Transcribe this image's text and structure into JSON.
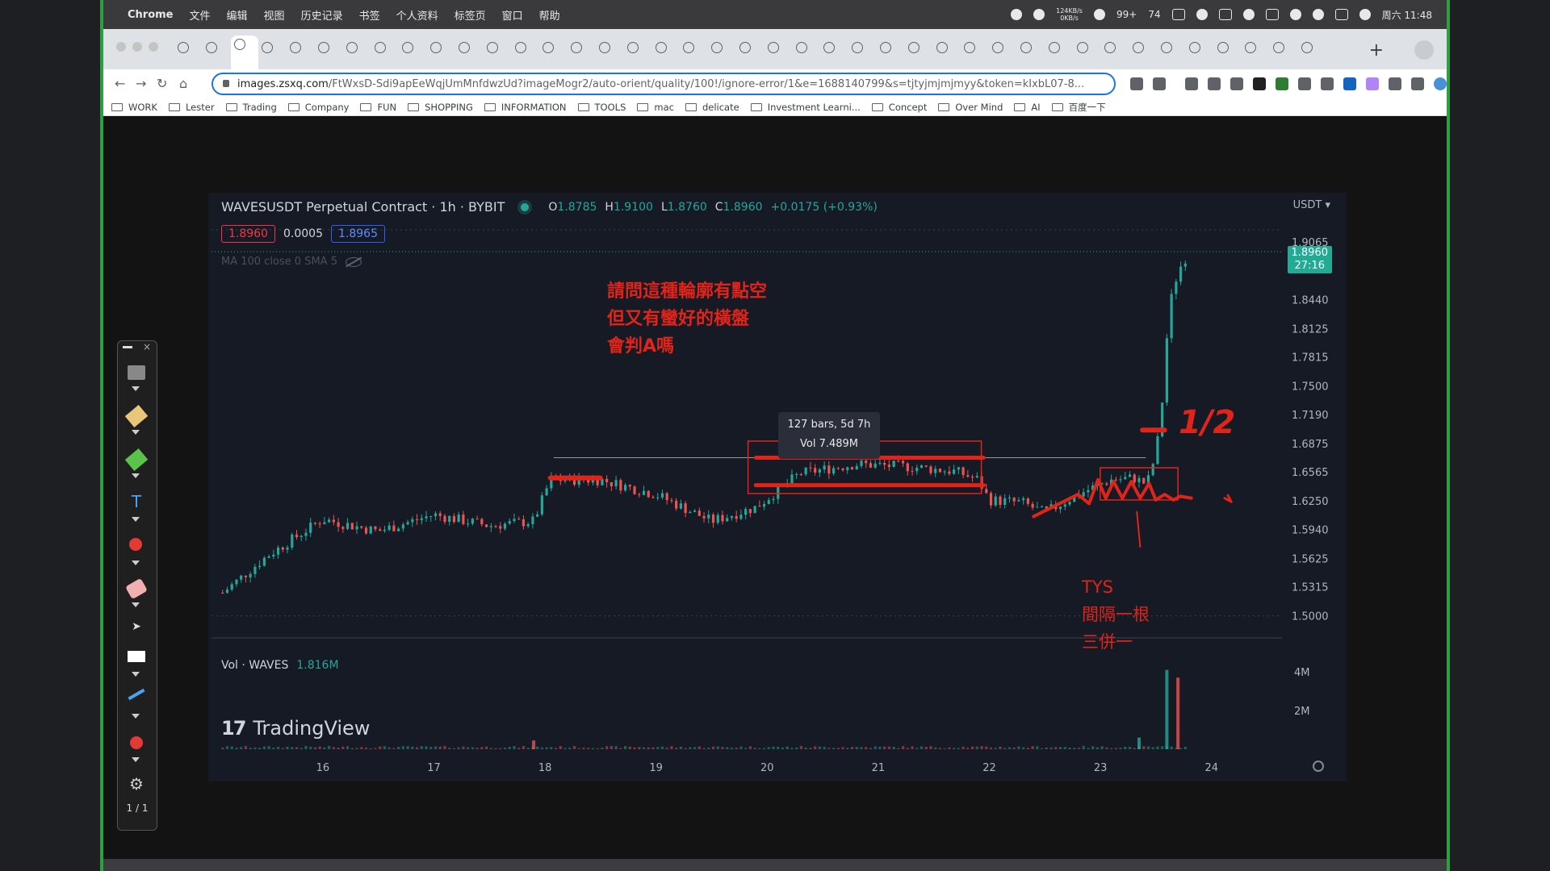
{
  "menubar": {
    "app": "Chrome",
    "items": [
      "文件",
      "编辑",
      "视图",
      "历史记录",
      "书签",
      "个人资料",
      "标签页",
      "窗口",
      "帮助"
    ],
    "net_up": "124KB/s",
    "net_down": "0KB/s",
    "badge1": "99+",
    "badge2": "74",
    "clock": "周六 11:48"
  },
  "browser": {
    "url_host": "images.zsxq.com",
    "url_path": "/FtWxsD-Sdi9apEeWqjUmMnfdwzUd?imageMogr2/auto-orient/quality/100!/ignore-error/1&e=1688140799&s=tjtyjmjmjmyy&token=kIxbL07-8...",
    "bookmarks": [
      "WORK",
      "Lester",
      "Trading",
      "Company",
      "FUN",
      "SHOPPING",
      "INFORMATION",
      "TOOLS",
      "mac",
      "delicate",
      "Investment Learni...",
      "Concept",
      "Over Mind",
      "AI",
      "百度一下"
    ]
  },
  "tradingview": {
    "symbol_title": "WAVESUSDT Perpetual Contract · 1h · BYBIT",
    "ohlc": {
      "o": "1.8785",
      "h": "1.9100",
      "l": "1.8760",
      "c": "1.8960",
      "change": "+0.0175 (+0.93%)"
    },
    "bid": "1.8960",
    "spread": "0.0005",
    "ask": "1.8965",
    "indicator": "MA 100 close 0 SMA 5",
    "currency": "USDT",
    "last_price": "1.8960",
    "countdown": "27:16",
    "volume_label": "Vol · WAVES",
    "volume_value": "1.816M",
    "logo_text": "TradingView",
    "measure_line1": "127 bars, 5d 7h",
    "measure_line2": "Vol 7.489M"
  },
  "annotations": {
    "question": [
      "請問這種輪廓有點空",
      "但又有蠻好的橫盤",
      "會判A嗎"
    ],
    "tys": [
      "TYS",
      "間隔一根",
      "三併一"
    ],
    "half": "1/2"
  },
  "toolbar": {
    "page": "1 / 1"
  },
  "colors": {
    "up": "#26a69a",
    "down": "#ef5350",
    "ink": "#e0241a",
    "accent": "#22ab94"
  },
  "chart_data": {
    "type": "candlestick",
    "title": "WAVESUSDT Perpetual Contract · 1h · BYBIT",
    "xlabel": "",
    "ylabel": "",
    "x_ticks": [
      "16",
      "17",
      "18",
      "19",
      "20",
      "21",
      "22",
      "23",
      "24"
    ],
    "y_ticks": [
      "1.9065",
      "1.8440",
      "1.8125",
      "1.7815",
      "1.7500",
      "1.7190",
      "1.6875",
      "1.6565",
      "1.6250",
      "1.5940",
      "1.5625",
      "1.5315",
      "1.5000"
    ],
    "volume_ticks": [
      "4M",
      "2M"
    ],
    "ylim": [
      1.49,
      1.925
    ],
    "series": [
      {
        "name": "close",
        "x": [
          15.1,
          15.5,
          16.0,
          16.5,
          17.0,
          17.5,
          17.9,
          18.05,
          18.5,
          19.0,
          19.5,
          19.9,
          20.3,
          20.8,
          21.3,
          21.7,
          21.9,
          22.0,
          22.3,
          22.5,
          22.8,
          23.1,
          23.3,
          23.42,
          23.5,
          23.55,
          23.62,
          23.7,
          23.8
        ],
        "values": [
          1.525,
          1.565,
          1.605,
          1.592,
          1.61,
          1.598,
          1.603,
          1.648,
          1.648,
          1.632,
          1.603,
          1.618,
          1.655,
          1.665,
          1.662,
          1.657,
          1.648,
          1.626,
          1.623,
          1.612,
          1.632,
          1.648,
          1.65,
          1.643,
          1.676,
          1.72,
          1.835,
          1.875,
          1.896
        ]
      }
    ],
    "volume": {
      "x": [
        17.9,
        23.35,
        23.6,
        23.7
      ],
      "values": [
        0.45,
        0.6,
        4.1,
        3.7
      ]
    },
    "grid": false,
    "legend": "top-left"
  }
}
